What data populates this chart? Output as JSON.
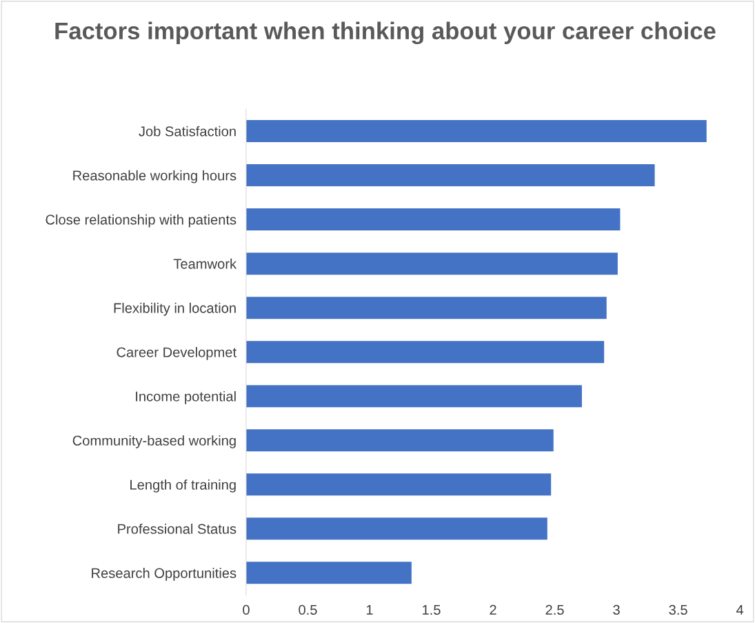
{
  "chart_data": {
    "type": "bar",
    "orientation": "horizontal",
    "title": "Factors important when thinking about your career choice",
    "categories": [
      "Job Satisfaction",
      "Reasonable working hours",
      "Close relationship with patients",
      "Teamwork",
      "Flexibility in location",
      "Career Developmet",
      "Income potential",
      "Community-based working",
      "Length of training",
      "Professional Status",
      "Research Opportunities"
    ],
    "values": [
      3.73,
      3.31,
      3.03,
      3.01,
      2.92,
      2.9,
      2.72,
      2.49,
      2.47,
      2.44,
      1.34
    ],
    "color": "#4472c4",
    "xlim": [
      0,
      4
    ],
    "xticks": [
      0,
      0.5,
      1,
      1.5,
      2,
      2.5,
      3,
      3.5,
      4
    ],
    "grid": false
  }
}
